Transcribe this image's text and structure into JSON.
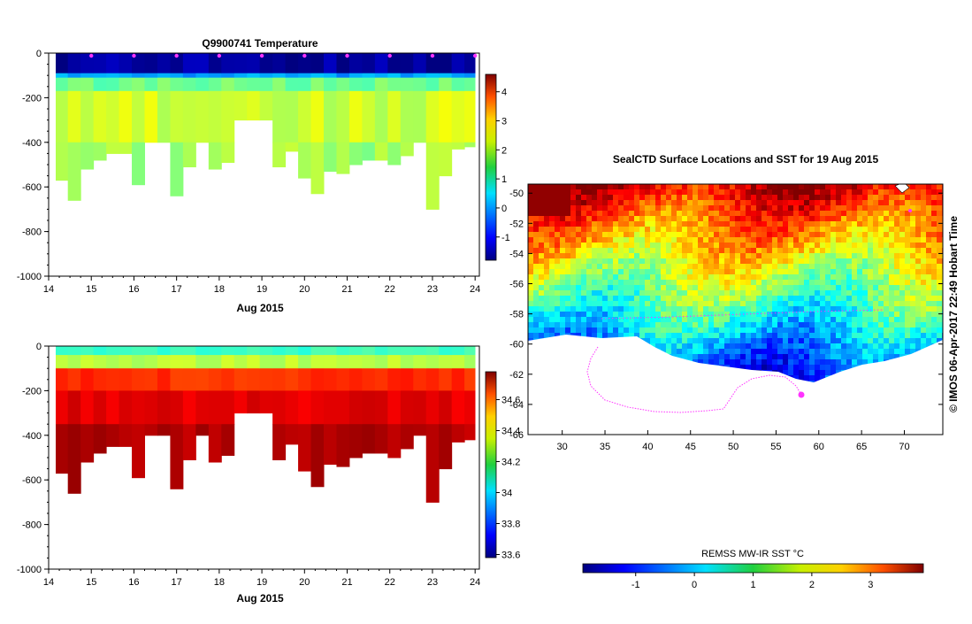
{
  "chart_data": [
    {
      "type": "heatmap",
      "title": "Q9900741  Temperature",
      "xlabel": "Aug 2015",
      "x_ticks": [
        "14",
        "15",
        "16",
        "17",
        "18",
        "19",
        "20",
        "21",
        "22",
        "23",
        "24"
      ],
      "xlim": [
        14,
        24.1
      ],
      "y_ticks": [
        "0",
        "-200",
        "-400",
        "-600",
        "-800",
        "-1000"
      ],
      "ylim": [
        -1000,
        0
      ],
      "colorbar_ticks": [
        "-1",
        "0",
        "1",
        "2",
        "3",
        "4"
      ],
      "colorbar_range": [
        -1.8,
        4.6
      ],
      "profile_times": [
        14.3,
        14.6,
        14.9,
        15.2,
        15.5,
        15.8,
        16.1,
        16.4,
        16.7,
        17.0,
        17.3,
        17.6,
        17.9,
        18.2,
        18.5,
        18.8,
        19.1,
        19.4,
        19.7,
        20.0,
        20.3,
        20.6,
        20.9,
        21.2,
        21.5,
        21.8,
        22.1,
        22.4,
        22.7,
        23.0,
        23.3,
        23.6,
        23.9
      ],
      "profile_max_depth": [
        -570,
        -660,
        -520,
        -480,
        -450,
        -450,
        -590,
        -400,
        -400,
        -640,
        -510,
        -400,
        -520,
        -490,
        -300,
        -300,
        -300,
        -510,
        -440,
        -560,
        -630,
        -530,
        -540,
        -500,
        -480,
        -480,
        -500,
        -460,
        -400,
        -700,
        -550,
        -430,
        -420
      ],
      "layers": [
        {
          "from": 0,
          "to": -90,
          "value": -1.6
        },
        {
          "from": -90,
          "to": -110,
          "value": 0.0
        },
        {
          "from": -110,
          "to": -170,
          "value": 1.3
        },
        {
          "from": -170,
          "to": -400,
          "value": 1.9
        },
        {
          "from": -400,
          "to": -1000,
          "value": 1.6
        }
      ],
      "markers_x": [
        15,
        16,
        17,
        18,
        19,
        20,
        21,
        22,
        23,
        24
      ]
    },
    {
      "type": "heatmap",
      "title": "",
      "xlabel": "Aug 2015",
      "x_ticks": [
        "14",
        "15",
        "16",
        "17",
        "18",
        "19",
        "20",
        "21",
        "22",
        "23",
        "24"
      ],
      "xlim": [
        14,
        24.1
      ],
      "y_ticks": [
        "0",
        "-200",
        "-400",
        "-600",
        "-800",
        "-1000"
      ],
      "ylim": [
        -1000,
        0
      ],
      "colorbar_ticks": [
        "33.6",
        "33.8",
        "34",
        "34.2",
        "34.4",
        "34.6"
      ],
      "colorbar_range": [
        33.58,
        34.78
      ],
      "layers": [
        {
          "from": 0,
          "to": -40,
          "value": 34.1
        },
        {
          "from": -40,
          "to": -100,
          "value": 34.25
        },
        {
          "from": -100,
          "to": -200,
          "value": 34.58
        },
        {
          "from": -200,
          "to": -350,
          "value": 34.66
        },
        {
          "from": -350,
          "to": -1000,
          "value": 34.72
        }
      ]
    },
    {
      "type": "heatmap",
      "title": "SealCTD Surface Locations and SST for 19 Aug 2015",
      "xlabel": "",
      "x_ticks": [
        "30",
        "35",
        "40",
        "45",
        "50",
        "55",
        "60",
        "65",
        "70"
      ],
      "xlim": [
        26,
        74.5
      ],
      "y_ticks": [
        "-50",
        "-52",
        "-54",
        "-56",
        "-58",
        "-60",
        "-62",
        "-64",
        "-66"
      ],
      "ylim": [
        -66,
        -49.4
      ],
      "colorbar_label": "REMSS MW-IR SST °C",
      "colorbar_ticks": [
        "-1",
        "0",
        "1",
        "2",
        "3"
      ],
      "colorbar_range": [
        -1.9,
        3.9
      ],
      "side_label": "© IMOS 06-Apr-2017 22:49 Hobart Time"
    }
  ],
  "colors": {
    "track": "#ff33ff",
    "background": "#ffffff",
    "axis": "#000000"
  }
}
